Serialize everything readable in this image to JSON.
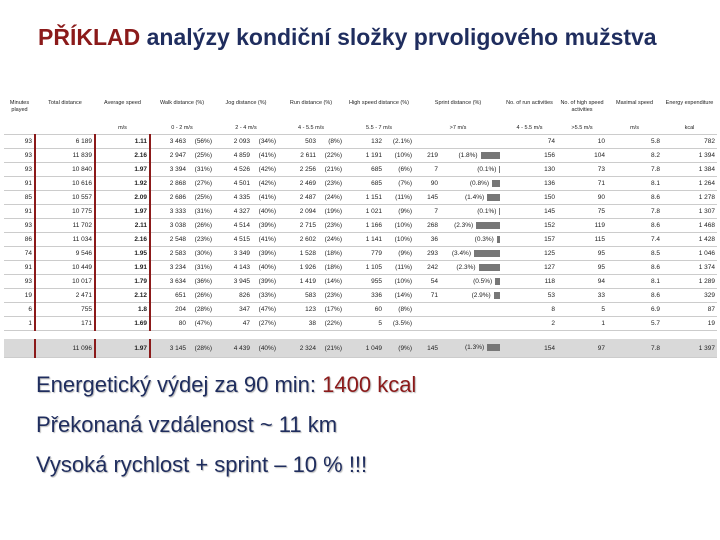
{
  "title": {
    "highlight": "PŘÍKLAD",
    "rest": "analýzy kondiční složky prvoligového mužstva"
  },
  "table": {
    "headers": [
      "Minutes played",
      "Total distance",
      "Average speed",
      "Walk distance (%)",
      "Jog distance (%)",
      "Run distance (%)",
      "High speed distance (%)",
      "Sprint distance (%)",
      "No. of run activities",
      "No. of high speed activities",
      "Maximal speed",
      "Energy expenditure"
    ],
    "units": [
      null,
      null,
      "m/s",
      "0 - 2 m/s",
      "2 - 4 m/s",
      "4 - 5.5 m/s",
      "5.5 - 7 m/s",
      ">7 m/s",
      "4 - 5.5 m/s",
      ">5.5 m/s",
      "m/s",
      "kcal"
    ],
    "rows": [
      [
        93,
        "6 189",
        1.11,
        "3 463",
        "(56%)",
        "2 093",
        "(34%)",
        "503",
        "(8%)",
        "132",
        "(2.1%)",
        null,
        null,
        74,
        10,
        5.8,
        "782"
      ],
      [
        93,
        "11 839",
        2.16,
        "2 947",
        "(25%)",
        "4 859",
        "(41%)",
        "2 611",
        "(22%)",
        "1 191",
        "(10%)",
        219,
        "(1.8%)",
        156,
        104,
        8.2,
        "1 394"
      ],
      [
        93,
        "10 840",
        1.97,
        "3 394",
        "(31%)",
        "4 526",
        "(42%)",
        "2 256",
        "(21%)",
        "685",
        "(6%)",
        7,
        "(0.1%)",
        130,
        73,
        7.8,
        "1 384"
      ],
      [
        91,
        "10 616",
        1.92,
        "2 868",
        "(27%)",
        "4 501",
        "(42%)",
        "2 469",
        "(23%)",
        "685",
        "(7%)",
        90,
        "(0.8%)",
        136,
        71,
        8.1,
        "1 264"
      ],
      [
        85,
        "10 557",
        2.09,
        "2 686",
        "(25%)",
        "4 335",
        "(41%)",
        "2 487",
        "(24%)",
        "1 151",
        "(11%)",
        145,
        "(1.4%)",
        150,
        90,
        8.6,
        "1 278"
      ],
      [
        91,
        "10 775",
        1.97,
        "3 333",
        "(31%)",
        "4 327",
        "(40%)",
        "2 094",
        "(19%)",
        "1 021",
        "(9%)",
        7,
        "(0.1%)",
        145,
        75,
        7.8,
        "1 307"
      ],
      [
        93,
        "11 702",
        2.11,
        "3 038",
        "(26%)",
        "4 514",
        "(39%)",
        "2 715",
        "(23%)",
        "1 166",
        "(10%)",
        268,
        "(2.3%)",
        152,
        119,
        8.6,
        "1 468"
      ],
      [
        86,
        "11 034",
        2.16,
        "2 548",
        "(23%)",
        "4 515",
        "(41%)",
        "2 602",
        "(24%)",
        "1 141",
        "(10%)",
        36,
        "(0.3%)",
        157,
        115,
        7.4,
        "1 428"
      ],
      [
        74,
        "9 546",
        1.95,
        "2 583",
        "(30%)",
        "3 349",
        "(39%)",
        "1 528",
        "(18%)",
        "779",
        "(9%)",
        293,
        "(3.4%)",
        125,
        95,
        8.5,
        "1 046"
      ],
      [
        91,
        "10 449",
        1.91,
        "3 234",
        "(31%)",
        "4 143",
        "(40%)",
        "1 926",
        "(18%)",
        "1 105",
        "(11%)",
        242,
        "(2.3%)",
        127,
        95,
        8.6,
        "1 374"
      ],
      [
        93,
        "10 017",
        1.79,
        "3 634",
        "(36%)",
        "3 945",
        "(39%)",
        "1 419",
        "(14%)",
        "955",
        "(10%)",
        54,
        "(0.5%)",
        118,
        94,
        8.1,
        "1 289"
      ],
      [
        19,
        "2 471",
        2.12,
        "651",
        "(26%)",
        "826",
        "(33%)",
        "583",
        "(23%)",
        "336",
        "(14%)",
        71,
        "(2.9%)",
        53,
        33,
        8.6,
        "329"
      ],
      [
        6,
        "755",
        1.8,
        "204",
        "(28%)",
        "347",
        "(47%)",
        "123",
        "(17%)",
        "60",
        "(8%)",
        null,
        null,
        8,
        5,
        6.9,
        "87"
      ],
      [
        1,
        "171",
        1.69,
        "80",
        "(47%)",
        "47",
        "(27%)",
        "38",
        "(22%)",
        "5",
        "(3.5%)",
        null,
        null,
        2,
        1,
        5.7,
        "19"
      ]
    ],
    "total": [
      null,
      "11 096",
      1.97,
      "3 145",
      "(28%)",
      "4 439",
      "(40%)",
      "2 324",
      "(21%)",
      "1 049",
      "(9%)",
      145,
      "(1.3%)",
      154,
      97,
      7.8,
      "1 397"
    ]
  },
  "bullets": [
    {
      "text": "Energetický výdej za 90 min: ",
      "highlight": "1400 kcal"
    },
    {
      "text": "Překonaná vzdálenost ~ 11 km"
    },
    {
      "text": "Vysoká rychlost + sprint – 10 % !!!"
    }
  ]
}
